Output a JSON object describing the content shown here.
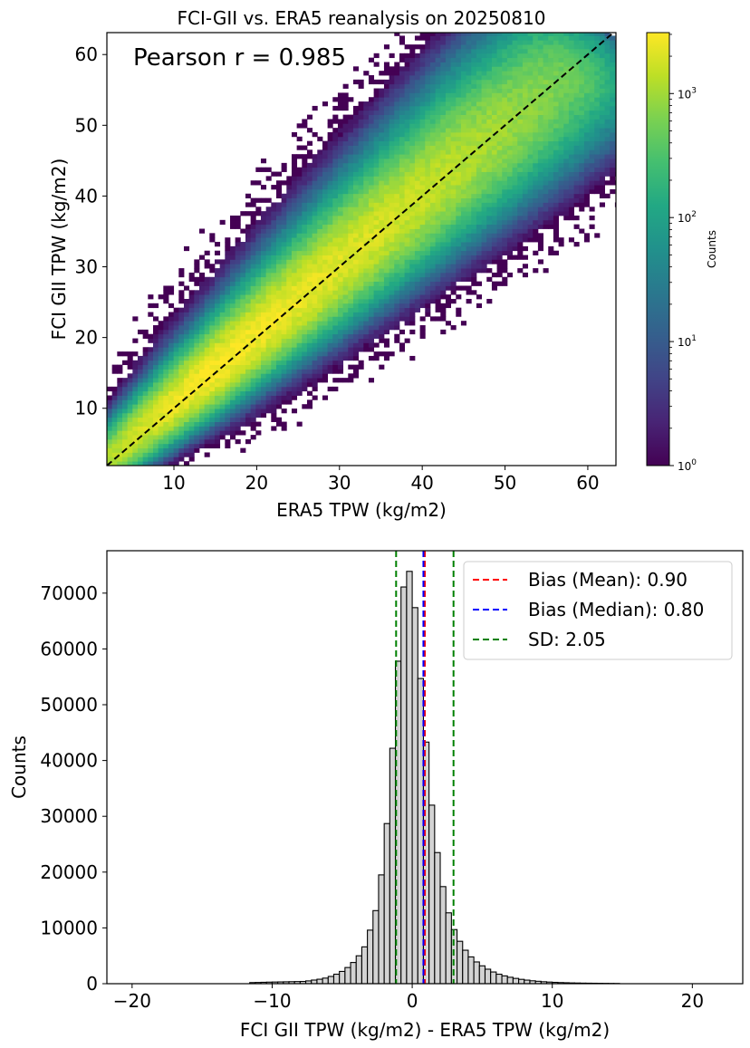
{
  "chart_data": [
    {
      "type": "heatmap",
      "title": "FCI-GII vs. ERA5 reanalysis on 20250810",
      "xlabel": "ERA5 TPW (kg/m2)",
      "ylabel": "FCI GII TPW (kg/m2)",
      "xlim": [
        1.9,
        63.4
      ],
      "ylim": [
        1.9,
        63.1
      ],
      "xticks": [
        10,
        20,
        30,
        40,
        50,
        60
      ],
      "yticks": [
        10,
        20,
        30,
        40,
        50,
        60
      ],
      "xtick_labels": [
        "10",
        "20",
        "30",
        "40",
        "50",
        "60"
      ],
      "ytick_labels": [
        "10",
        "20",
        "30",
        "40",
        "50",
        "60"
      ],
      "annotation": "Pearson r = 0.985",
      "reference_line": {
        "label": "1:1 line",
        "style": "dashed",
        "color": "#000000"
      },
      "bin_width": 0.62,
      "density_model": {
        "description": "Counts concentrated along 1:1 line, peak density at low-to-mid TPW, log color scale",
        "peak_count": 3100,
        "spread_sd": 2.05,
        "bias": 0.9
      },
      "colorbar": {
        "label": "Counts",
        "scale": "log",
        "colormap": "viridis",
        "range": [
          1,
          3100
        ],
        "tick_labels": [
          "10^0",
          "10^1",
          "10^2",
          "10^3"
        ],
        "ticks": [
          1,
          10,
          100,
          1000
        ]
      }
    },
    {
      "type": "bar",
      "subtype": "histogram",
      "xlabel": "FCI GII TPW (kg/m2) - ERA5 TPW (kg/m2)",
      "ylabel": "Counts",
      "xlim": [
        -21.8,
        23.6
      ],
      "ylim": [
        0,
        77600
      ],
      "xticks": [
        -20,
        -10,
        0,
        10,
        20
      ],
      "xtick_labels": [
        "−20",
        "−10",
        "0",
        "10",
        "20"
      ],
      "yticks": [
        0,
        10000,
        20000,
        30000,
        40000,
        50000,
        60000,
        70000
      ],
      "ytick_labels": [
        "0",
        "10000",
        "20000",
        "30000",
        "40000",
        "50000",
        "60000",
        "70000"
      ],
      "bin_width": 0.4,
      "bins": [
        {
          "x0": -11.6,
          "count": 200
        },
        {
          "x0": -11.2,
          "count": 220
        },
        {
          "x0": -10.8,
          "count": 250
        },
        {
          "x0": -10.4,
          "count": 280
        },
        {
          "x0": -10.0,
          "count": 300
        },
        {
          "x0": -9.6,
          "count": 320
        },
        {
          "x0": -9.2,
          "count": 340
        },
        {
          "x0": -8.8,
          "count": 360
        },
        {
          "x0": -8.4,
          "count": 380
        },
        {
          "x0": -8.0,
          "count": 400
        },
        {
          "x0": -7.6,
          "count": 500
        },
        {
          "x0": -7.2,
          "count": 650
        },
        {
          "x0": -6.8,
          "count": 800
        },
        {
          "x0": -6.4,
          "count": 1000
        },
        {
          "x0": -6.0,
          "count": 1300
        },
        {
          "x0": -5.6,
          "count": 1700
        },
        {
          "x0": -5.2,
          "count": 2200
        },
        {
          "x0": -4.8,
          "count": 2900
        },
        {
          "x0": -4.4,
          "count": 3800
        },
        {
          "x0": -4.0,
          "count": 5000
        },
        {
          "x0": -3.6,
          "count": 6600
        },
        {
          "x0": -3.2,
          "count": 9600
        },
        {
          "x0": -2.8,
          "count": 13100
        },
        {
          "x0": -2.4,
          "count": 19500
        },
        {
          "x0": -2.0,
          "count": 28700
        },
        {
          "x0": -1.6,
          "count": 42200
        },
        {
          "x0": -1.2,
          "count": 57800
        },
        {
          "x0": -0.8,
          "count": 71100
        },
        {
          "x0": -0.4,
          "count": 73900
        },
        {
          "x0": 0.0,
          "count": 67400
        },
        {
          "x0": 0.4,
          "count": 54700
        },
        {
          "x0": 0.8,
          "count": 43300
        },
        {
          "x0": 1.2,
          "count": 32000
        },
        {
          "x0": 1.6,
          "count": 23500
        },
        {
          "x0": 2.0,
          "count": 17400
        },
        {
          "x0": 2.4,
          "count": 12700
        },
        {
          "x0": 2.8,
          "count": 9700
        },
        {
          "x0": 3.2,
          "count": 7600
        },
        {
          "x0": 3.6,
          "count": 6000
        },
        {
          "x0": 4.0,
          "count": 4800
        },
        {
          "x0": 4.4,
          "count": 3900
        },
        {
          "x0": 4.8,
          "count": 3200
        },
        {
          "x0": 5.2,
          "count": 2600
        },
        {
          "x0": 5.6,
          "count": 2100
        },
        {
          "x0": 6.0,
          "count": 1700
        },
        {
          "x0": 6.4,
          "count": 1400
        },
        {
          "x0": 6.8,
          "count": 1150
        },
        {
          "x0": 7.2,
          "count": 950
        },
        {
          "x0": 7.6,
          "count": 780
        },
        {
          "x0": 8.0,
          "count": 640
        },
        {
          "x0": 8.4,
          "count": 520
        },
        {
          "x0": 8.8,
          "count": 430
        },
        {
          "x0": 9.2,
          "count": 350
        },
        {
          "x0": 9.6,
          "count": 290
        },
        {
          "x0": 10.0,
          "count": 240
        },
        {
          "x0": 10.4,
          "count": 200
        },
        {
          "x0": 10.8,
          "count": 170
        },
        {
          "x0": 11.2,
          "count": 140
        },
        {
          "x0": 11.6,
          "count": 120
        },
        {
          "x0": 12.0,
          "count": 100
        },
        {
          "x0": 12.4,
          "count": 90
        },
        {
          "x0": 12.8,
          "count": 80
        },
        {
          "x0": 13.2,
          "count": 70
        },
        {
          "x0": 13.6,
          "count": 60
        },
        {
          "x0": 14.0,
          "count": 50
        },
        {
          "x0": 14.4,
          "count": 40
        }
      ],
      "vlines": [
        {
          "label": "Bias (Mean): 0.90",
          "x": 0.9,
          "color": "#ff0000"
        },
        {
          "label": "Bias (Median): 0.80",
          "x": 0.8,
          "color": "#0000ff"
        },
        {
          "label": "SD: 2.05",
          "x": -1.15,
          "color": "#008000",
          "show_in_legend": true
        },
        {
          "label": "",
          "x": 2.95,
          "color": "#008000",
          "show_in_legend": false
        }
      ],
      "legend": {
        "position": "top-right",
        "entries": [
          {
            "label": "Bias (Mean): 0.90",
            "color": "#ff0000"
          },
          {
            "label": "Bias (Median): 0.80",
            "color": "#0000ff"
          },
          {
            "label": "SD: 2.05",
            "color": "#008000"
          }
        ]
      },
      "bar_fill": "#d3d3d3",
      "bar_edge": "#000000"
    }
  ]
}
